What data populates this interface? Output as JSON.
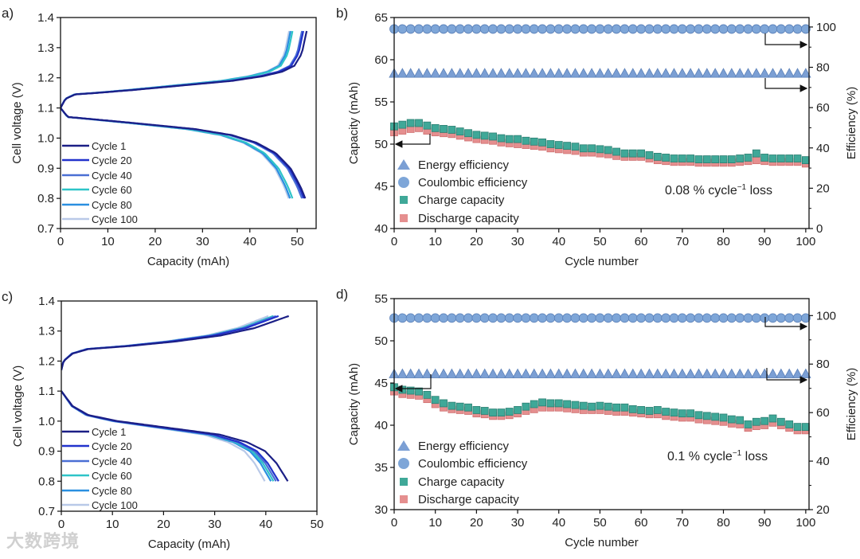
{
  "watermark": "大数跨境",
  "chart_data": [
    {
      "panel": "a)",
      "type": "line",
      "xlabel": "Capacity (mAh)",
      "ylabel": "Cell voltage (V)",
      "xlim": [
        0,
        54
      ],
      "ylim": [
        0.7,
        1.4
      ],
      "xticks": [
        0,
        10,
        20,
        30,
        40,
        50
      ],
      "yticks": [
        0.7,
        0.8,
        0.9,
        1.0,
        1.1,
        1.2,
        1.3,
        1.4
      ],
      "ytick_decimals": 1,
      "charge_shape": [
        [
          0,
          1.1
        ],
        [
          0.02,
          1.13
        ],
        [
          0.06,
          1.145
        ],
        [
          0.15,
          1.15
        ],
        [
          0.3,
          1.16
        ],
        [
          0.5,
          1.175
        ],
        [
          0.7,
          1.19
        ],
        [
          0.82,
          1.205
        ],
        [
          0.9,
          1.22
        ],
        [
          0.95,
          1.24
        ],
        [
          0.98,
          1.28
        ],
        [
          1.0,
          1.355
        ]
      ],
      "discharge_shape": [
        [
          0,
          1.1
        ],
        [
          0.03,
          1.07
        ],
        [
          0.1,
          1.065
        ],
        [
          0.3,
          1.05
        ],
        [
          0.55,
          1.03
        ],
        [
          0.7,
          1.01
        ],
        [
          0.8,
          0.985
        ],
        [
          0.88,
          0.95
        ],
        [
          0.94,
          0.9
        ],
        [
          0.98,
          0.84
        ],
        [
          1.0,
          0.8
        ]
      ],
      "series": [
        {
          "name": "Cycle 1",
          "color": "#1b1f86",
          "charge_capacity": 52.0,
          "discharge_capacity": 51.7
        },
        {
          "name": "Cycle 20",
          "color": "#2233cc",
          "charge_capacity": 51.3,
          "discharge_capacity": 51.4
        },
        {
          "name": "Cycle 40",
          "color": "#4a6fd4",
          "charge_capacity": 51.0,
          "discharge_capacity": 51.0
        },
        {
          "name": "Cycle 60",
          "color": "#2ec4c8",
          "charge_capacity": 49.0,
          "discharge_capacity": 49.0
        },
        {
          "name": "Cycle 80",
          "color": "#2a8fe0",
          "charge_capacity": 48.6,
          "discharge_capacity": 48.5
        },
        {
          "name": "Cycle 100",
          "color": "#b9c9e8",
          "charge_capacity": 48.3,
          "discharge_capacity": 48.2
        }
      ]
    },
    {
      "panel": "b)",
      "type": "scatter",
      "xlabel": "Cycle number",
      "ylabel": "Capacity (mAh)",
      "y2label": "Efficiency (%)",
      "xlim": [
        0,
        100.8
      ],
      "ylim": [
        40,
        65
      ],
      "y2lim": [
        0,
        104.7
      ],
      "xticks": [
        0,
        10,
        20,
        30,
        40,
        50,
        60,
        70,
        80,
        90,
        100
      ],
      "yticks": [
        40,
        45,
        50,
        55,
        60,
        65
      ],
      "y2ticks": [
        0,
        20,
        40,
        60,
        80,
        100
      ],
      "y2minor": [
        10,
        30,
        50,
        70,
        90
      ],
      "annotation": {
        "text": "0.08 % cycle",
        "sup": "−1",
        "suffix": " loss"
      },
      "x": [
        0,
        2,
        4,
        6,
        8,
        10,
        12,
        14,
        16,
        18,
        20,
        22,
        24,
        26,
        28,
        30,
        32,
        34,
        36,
        38,
        40,
        42,
        44,
        46,
        48,
        50,
        52,
        54,
        56,
        58,
        60,
        62,
        64,
        66,
        68,
        70,
        72,
        74,
        76,
        78,
        80,
        82,
        84,
        86,
        88,
        90,
        92,
        94,
        96,
        98,
        100
      ],
      "series": [
        {
          "name": "Energy efficiency",
          "axis": "right",
          "marker": "triangle",
          "color": "#7b9fd4",
          "constant": 77
        },
        {
          "name": "Coulombic efficiency",
          "axis": "right",
          "marker": "circle",
          "color": "#7ea6d8",
          "constant": 99
        },
        {
          "name": "Charge capacity",
          "axis": "left",
          "marker": "square",
          "color": "#3fa898",
          "values": [
            52.1,
            52.3,
            52.5,
            52.5,
            52.2,
            51.9,
            51.8,
            51.7,
            51.5,
            51.3,
            51.1,
            51.0,
            50.9,
            50.7,
            50.6,
            50.6,
            50.4,
            50.3,
            50.2,
            50.0,
            49.9,
            49.8,
            49.7,
            49.5,
            49.5,
            49.4,
            49.3,
            49.1,
            48.9,
            48.9,
            48.9,
            48.7,
            48.5,
            48.4,
            48.3,
            48.3,
            48.3,
            48.2,
            48.2,
            48.2,
            48.2,
            48.2,
            48.3,
            48.4,
            48.9,
            48.4,
            48.3,
            48.3,
            48.3,
            48.3,
            48.1
          ]
        },
        {
          "name": "Discharge capacity",
          "axis": "left",
          "marker": "square",
          "color": "#e58f8f",
          "values": [
            51.4,
            51.6,
            51.8,
            51.9,
            51.6,
            51.4,
            51.3,
            51.2,
            51.0,
            50.8,
            50.6,
            50.5,
            50.4,
            50.2,
            50.1,
            50.0,
            49.9,
            49.8,
            49.7,
            49.5,
            49.4,
            49.3,
            49.2,
            49.0,
            49.0,
            48.9,
            48.8,
            48.6,
            48.5,
            48.5,
            48.5,
            48.3,
            48.1,
            48.0,
            47.9,
            47.9,
            47.9,
            47.8,
            47.8,
            47.8,
            47.8,
            47.8,
            47.9,
            48.0,
            48.1,
            48.0,
            47.9,
            47.9,
            47.9,
            47.9,
            47.7
          ]
        }
      ]
    },
    {
      "panel": "c)",
      "type": "line",
      "xlabel": "Capacity (mAh)",
      "ylabel": "Cell voltage (V)",
      "xlim": [
        0,
        50
      ],
      "ylim": [
        0.7,
        1.4
      ],
      "xticks": [
        0,
        10,
        20,
        30,
        40,
        50
      ],
      "yticks": [
        0.7,
        0.8,
        0.9,
        1.0,
        1.1,
        1.2,
        1.3,
        1.4
      ],
      "ytick_decimals": 1,
      "charge_shape": [
        [
          0,
          1.17
        ],
        [
          0.01,
          1.2
        ],
        [
          0.05,
          1.225
        ],
        [
          0.12,
          1.24
        ],
        [
          0.3,
          1.25
        ],
        [
          0.5,
          1.265
        ],
        [
          0.7,
          1.285
        ],
        [
          0.85,
          1.31
        ],
        [
          1.0,
          1.35
        ]
      ],
      "discharge_shape": [
        [
          0,
          1.1
        ],
        [
          0.05,
          1.05
        ],
        [
          0.12,
          1.02
        ],
        [
          0.25,
          1.0
        ],
        [
          0.5,
          0.975
        ],
        [
          0.7,
          0.955
        ],
        [
          0.82,
          0.93
        ],
        [
          0.9,
          0.9
        ],
        [
          0.95,
          0.86
        ],
        [
          1.0,
          0.8
        ]
      ],
      "series": [
        {
          "name": "Cycle 1",
          "color": "#1b1f86",
          "charge_capacity": 44.5,
          "discharge_capacity": 44.3
        },
        {
          "name": "Cycle 20",
          "color": "#2233cc",
          "charge_capacity": 42.5,
          "discharge_capacity": 42.5
        },
        {
          "name": "Cycle 40",
          "color": "#4a6fd4",
          "charge_capacity": 42.0,
          "discharge_capacity": 42.0
        },
        {
          "name": "Cycle 60",
          "color": "#2ec4c8",
          "charge_capacity": 41.5,
          "discharge_capacity": 41.5
        },
        {
          "name": "Cycle 80",
          "color": "#2a8fe0",
          "charge_capacity": 41.5,
          "discharge_capacity": 41.0
        },
        {
          "name": "Cycle 100",
          "color": "#b9c9e8",
          "charge_capacity": 40.5,
          "discharge_capacity": 39.8
        }
      ]
    },
    {
      "panel": "d)",
      "type": "scatter",
      "xlabel": "Cycle number",
      "ylabel": "Capacity (mAh)",
      "y2label": "Efficiency (%)",
      "xlim": [
        0,
        100.8
      ],
      "ylim": [
        30,
        55
      ],
      "y2lim": [
        20,
        107
      ],
      "xticks": [
        0,
        10,
        20,
        30,
        40,
        50,
        60,
        70,
        80,
        90,
        100
      ],
      "yticks": [
        30,
        35,
        40,
        45,
        50,
        55
      ],
      "y2ticks": [
        20,
        40,
        60,
        80,
        100
      ],
      "y2minor": [
        30,
        50,
        70,
        90
      ],
      "annotation": {
        "text": "0.1 % cycle",
        "sup": "−1",
        "suffix": " loss"
      },
      "x": [
        0,
        2,
        4,
        6,
        8,
        10,
        12,
        14,
        16,
        18,
        20,
        22,
        24,
        26,
        28,
        30,
        32,
        34,
        36,
        38,
        40,
        42,
        44,
        46,
        48,
        50,
        52,
        54,
        56,
        58,
        60,
        62,
        64,
        66,
        68,
        70,
        72,
        74,
        76,
        78,
        80,
        82,
        84,
        86,
        88,
        90,
        92,
        94,
        96,
        98,
        100
      ],
      "series": [
        {
          "name": "Energy efficiency",
          "axis": "right",
          "marker": "triangle",
          "color": "#7b9fd4",
          "constant": 76
        },
        {
          "name": "Coulombic efficiency",
          "axis": "right",
          "marker": "circle",
          "color": "#7ea6d8",
          "constant": 99
        },
        {
          "name": "Charge capacity",
          "axis": "left",
          "marker": "square",
          "color": "#3fa898",
          "values": [
            44.5,
            44.2,
            44.1,
            44.0,
            43.6,
            43.0,
            42.6,
            42.3,
            42.2,
            42.1,
            41.8,
            41.7,
            41.5,
            41.5,
            41.6,
            41.8,
            42.2,
            42.5,
            42.7,
            42.6,
            42.6,
            42.5,
            42.4,
            42.3,
            42.2,
            42.3,
            42.2,
            42.1,
            42.1,
            41.9,
            41.8,
            41.7,
            41.8,
            41.6,
            41.5,
            41.4,
            41.4,
            41.2,
            41.1,
            41.0,
            40.9,
            40.7,
            40.6,
            40.1,
            40.4,
            40.5,
            40.8,
            40.4,
            40.1,
            39.8,
            39.8
          ]
        },
        {
          "name": "Discharge capacity",
          "axis": "left",
          "marker": "square",
          "color": "#e58f8f",
          "values": [
            44.0,
            43.7,
            43.6,
            43.5,
            43.1,
            42.5,
            42.1,
            41.9,
            41.8,
            41.7,
            41.4,
            41.3,
            41.1,
            41.1,
            41.2,
            41.4,
            41.7,
            41.9,
            42.1,
            42.1,
            42.1,
            42.0,
            41.9,
            41.8,
            41.8,
            41.8,
            41.7,
            41.6,
            41.6,
            41.5,
            41.4,
            41.3,
            41.3,
            41.1,
            41.0,
            40.9,
            40.9,
            40.7,
            40.6,
            40.5,
            40.4,
            40.2,
            40.1,
            39.7,
            39.9,
            40.0,
            40.3,
            40.0,
            39.7,
            39.4,
            39.4
          ]
        }
      ]
    }
  ]
}
